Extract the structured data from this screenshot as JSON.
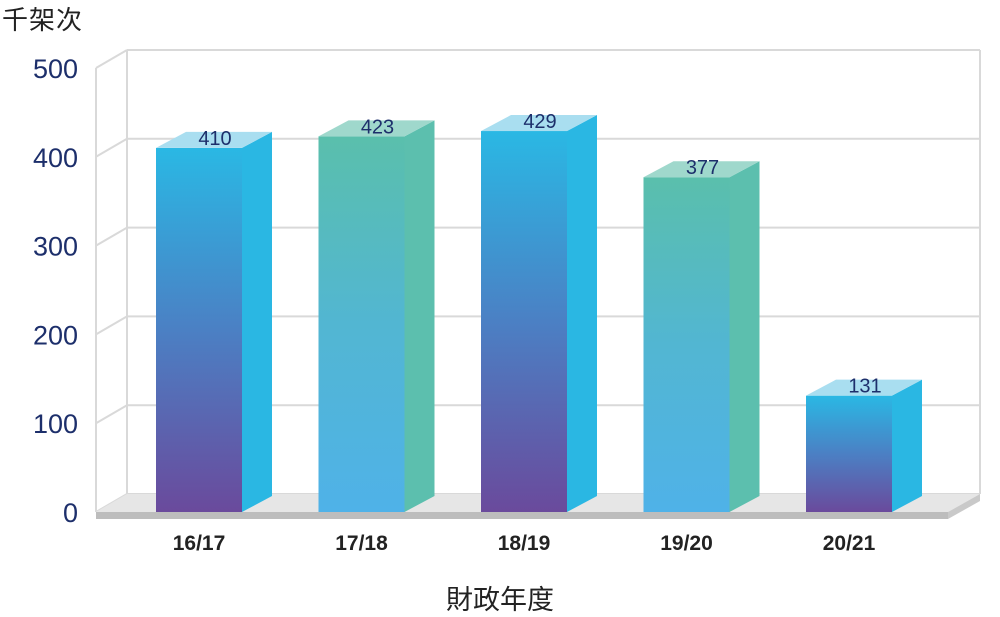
{
  "chart_data": {
    "type": "bar",
    "unit_label": "千架次",
    "xlabel": "財政年度",
    "categories": [
      "16/17",
      "17/18",
      "18/19",
      "19/20",
      "20/21"
    ],
    "values": [
      410,
      423,
      429,
      377,
      131
    ],
    "yticks": [
      0,
      100,
      200,
      300,
      400,
      500
    ],
    "ylim": [
      0,
      500
    ],
    "grid": true,
    "bar_styles": [
      "blue-purple",
      "teal",
      "blue-purple",
      "teal",
      "blue-purple"
    ],
    "colors": {
      "purple": "#6a4a9c",
      "cyan": "#2ab7e3",
      "sky": "#4db3e6",
      "teal": "#5cbfae",
      "axis_text": "#1d2f6b"
    }
  }
}
